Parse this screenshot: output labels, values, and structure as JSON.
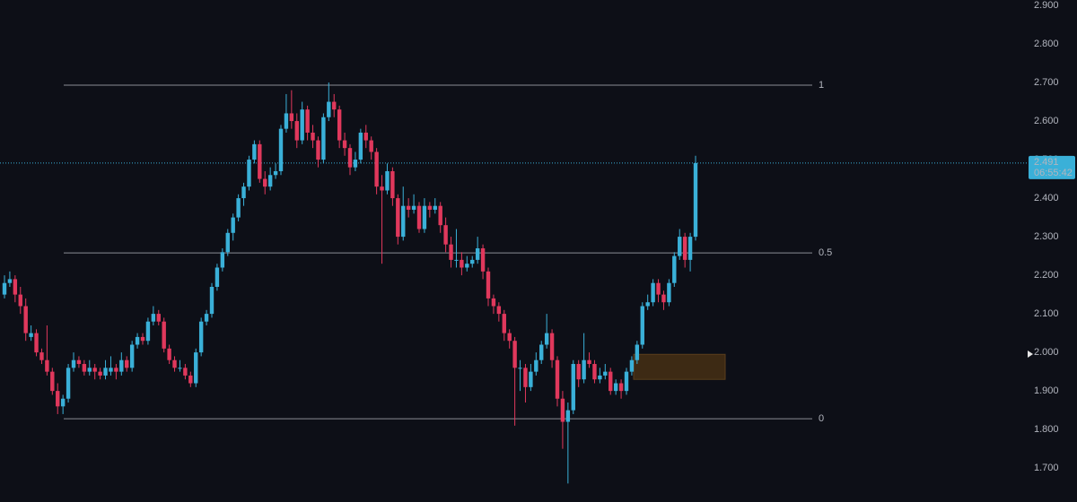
{
  "chart_data": {
    "type": "candlestick",
    "up_color": "#3ab0d8",
    "down_color": "#e0385c",
    "ylim": [
      1.612,
      2.914
    ],
    "yticks": [
      {
        "value": 2.9,
        "label": "2.900"
      },
      {
        "value": 2.8,
        "label": "2.800"
      },
      {
        "value": 2.7,
        "label": "2.700"
      },
      {
        "value": 2.6,
        "label": "2.600"
      },
      {
        "value": 2.5,
        "label": "2.500"
      },
      {
        "value": 2.4,
        "label": "2.400"
      },
      {
        "value": 2.3,
        "label": "2.300"
      },
      {
        "value": 2.2,
        "label": "2.200"
      },
      {
        "value": 2.1,
        "label": "2.100"
      },
      {
        "value": 2.0,
        "label": "2.000"
      },
      {
        "value": 1.9,
        "label": "1.900"
      },
      {
        "value": 1.8,
        "label": "1.800"
      },
      {
        "value": 1.7,
        "label": "1.700"
      }
    ],
    "last_price": {
      "value": 2.491,
      "label": "2.491",
      "countdown": "06:55:42"
    },
    "fib_levels": [
      {
        "level": 1,
        "price": 2.693
      },
      {
        "level": 0.5,
        "price": 2.258
      },
      {
        "level": 0,
        "price": 1.828
      }
    ],
    "zone": {
      "low": 1.93,
      "high": 1.995,
      "color": "#3d2a14"
    },
    "ohlc": [
      [
        2.15,
        2.2,
        2.14,
        2.18
      ],
      [
        2.18,
        2.21,
        2.17,
        2.19
      ],
      [
        2.19,
        2.2,
        2.13,
        2.15
      ],
      [
        2.15,
        2.17,
        2.1,
        2.12
      ],
      [
        2.12,
        2.14,
        2.03,
        2.05
      ],
      [
        2.04,
        2.07,
        2.03,
        2.05
      ],
      [
        2.05,
        2.06,
        1.99,
        2.0
      ],
      [
        2.0,
        2.01,
        1.97,
        1.98
      ],
      [
        1.98,
        2.07,
        1.94,
        1.95
      ],
      [
        1.95,
        1.96,
        1.89,
        1.9
      ],
      [
        1.9,
        1.92,
        1.84,
        1.86
      ],
      [
        1.86,
        1.89,
        1.84,
        1.88
      ],
      [
        1.88,
        1.97,
        1.87,
        1.96
      ],
      [
        1.96,
        2.0,
        1.95,
        1.98
      ],
      [
        1.98,
        1.99,
        1.96,
        1.97
      ],
      [
        1.97,
        1.98,
        1.94,
        1.95
      ],
      [
        1.95,
        1.98,
        1.94,
        1.96
      ],
      [
        1.96,
        1.97,
        1.93,
        1.95
      ],
      [
        1.95,
        1.96,
        1.93,
        1.94
      ],
      [
        1.94,
        1.98,
        1.93,
        1.96
      ],
      [
        1.95,
        1.99,
        1.94,
        1.96
      ],
      [
        1.96,
        1.97,
        1.93,
        1.95
      ],
      [
        1.95,
        2.0,
        1.94,
        1.98
      ],
      [
        1.98,
        1.99,
        1.95,
        1.96
      ],
      [
        1.96,
        2.03,
        1.95,
        2.02
      ],
      [
        2.02,
        2.05,
        2.01,
        2.04
      ],
      [
        2.04,
        2.05,
        2.02,
        2.03
      ],
      [
        2.03,
        2.09,
        2.02,
        2.08
      ],
      [
        2.08,
        2.12,
        2.07,
        2.1
      ],
      [
        2.1,
        2.11,
        2.07,
        2.08
      ],
      [
        2.08,
        2.09,
        2.0,
        2.01
      ],
      [
        2.01,
        2.02,
        1.97,
        1.98
      ],
      [
        1.98,
        1.99,
        1.95,
        1.96
      ],
      [
        1.96,
        1.98,
        1.95,
        1.96
      ],
      [
        1.96,
        1.97,
        1.93,
        1.94
      ],
      [
        1.94,
        1.95,
        1.91,
        1.92
      ],
      [
        1.92,
        2.01,
        1.91,
        2.0
      ],
      [
        2.0,
        2.09,
        1.99,
        2.08
      ],
      [
        2.08,
        2.11,
        2.07,
        2.1
      ],
      [
        2.1,
        2.18,
        2.09,
        2.17
      ],
      [
        2.17,
        2.23,
        2.16,
        2.22
      ],
      [
        2.22,
        2.27,
        2.21,
        2.26
      ],
      [
        2.26,
        2.32,
        2.25,
        2.31
      ],
      [
        2.31,
        2.36,
        2.29,
        2.35
      ],
      [
        2.35,
        2.41,
        2.34,
        2.4
      ],
      [
        2.4,
        2.44,
        2.38,
        2.43
      ],
      [
        2.43,
        2.51,
        2.42,
        2.5
      ],
      [
        2.5,
        2.55,
        2.49,
        2.54
      ],
      [
        2.54,
        2.55,
        2.44,
        2.45
      ],
      [
        2.45,
        2.47,
        2.41,
        2.43
      ],
      [
        2.43,
        2.48,
        2.42,
        2.46
      ],
      [
        2.46,
        2.49,
        2.45,
        2.47
      ],
      [
        2.47,
        2.59,
        2.46,
        2.58
      ],
      [
        2.58,
        2.67,
        2.57,
        2.62
      ],
      [
        2.62,
        2.68,
        2.58,
        2.6
      ],
      [
        2.6,
        2.62,
        2.53,
        2.55
      ],
      [
        2.55,
        2.65,
        2.54,
        2.63
      ],
      [
        2.63,
        2.64,
        2.55,
        2.57
      ],
      [
        2.57,
        2.59,
        2.53,
        2.55
      ],
      [
        2.55,
        2.56,
        2.48,
        2.5
      ],
      [
        2.5,
        2.62,
        2.49,
        2.61
      ],
      [
        2.61,
        2.7,
        2.6,
        2.65
      ],
      [
        2.65,
        2.67,
        2.61,
        2.63
      ],
      [
        2.63,
        2.64,
        2.53,
        2.55
      ],
      [
        2.55,
        2.57,
        2.51,
        2.53
      ],
      [
        2.53,
        2.54,
        2.46,
        2.48
      ],
      [
        2.48,
        2.52,
        2.47,
        2.5
      ],
      [
        2.5,
        2.58,
        2.49,
        2.57
      ],
      [
        2.57,
        2.59,
        2.53,
        2.55
      ],
      [
        2.55,
        2.56,
        2.5,
        2.52
      ],
      [
        2.52,
        2.53,
        2.41,
        2.43
      ],
      [
        2.43,
        2.46,
        2.23,
        2.42
      ],
      [
        2.42,
        2.49,
        2.41,
        2.47
      ],
      [
        2.47,
        2.48,
        2.38,
        2.4
      ],
      [
        2.4,
        2.41,
        2.28,
        2.3
      ],
      [
        2.3,
        2.43,
        2.29,
        2.38
      ],
      [
        2.38,
        2.4,
        2.35,
        2.37
      ],
      [
        2.37,
        2.41,
        2.36,
        2.38
      ],
      [
        2.38,
        2.39,
        2.31,
        2.32
      ],
      [
        2.32,
        2.4,
        2.31,
        2.38
      ],
      [
        2.38,
        2.39,
        2.35,
        2.37
      ],
      [
        2.37,
        2.4,
        2.36,
        2.38
      ],
      [
        2.38,
        2.39,
        2.31,
        2.33
      ],
      [
        2.33,
        2.35,
        2.26,
        2.28
      ],
      [
        2.28,
        2.3,
        2.22,
        2.24
      ],
      [
        2.24,
        2.32,
        2.22,
        2.24
      ],
      [
        2.24,
        2.26,
        2.2,
        2.22
      ],
      [
        2.22,
        2.25,
        2.21,
        2.23
      ],
      [
        2.23,
        2.25,
        2.22,
        2.24
      ],
      [
        2.24,
        2.3,
        2.23,
        2.27
      ],
      [
        2.27,
        2.28,
        2.19,
        2.21
      ],
      [
        2.21,
        2.22,
        2.12,
        2.14
      ],
      [
        2.14,
        2.15,
        2.1,
        2.12
      ],
      [
        2.12,
        2.13,
        2.08,
        2.1
      ],
      [
        2.1,
        2.11,
        2.03,
        2.05
      ],
      [
        2.05,
        2.06,
        2.01,
        2.03
      ],
      [
        2.03,
        2.04,
        1.81,
        1.96
      ],
      [
        1.96,
        1.98,
        1.9,
        1.96
      ],
      [
        1.96,
        1.97,
        1.87,
        1.91
      ],
      [
        1.91,
        1.97,
        1.9,
        1.95
      ],
      [
        1.95,
        2.0,
        1.94,
        1.98
      ],
      [
        1.98,
        2.03,
        1.97,
        2.02
      ],
      [
        2.02,
        2.1,
        2.01,
        2.05
      ],
      [
        2.05,
        2.06,
        1.96,
        1.98
      ],
      [
        1.98,
        1.99,
        1.86,
        1.88
      ],
      [
        1.88,
        1.9,
        1.75,
        1.82
      ],
      [
        1.82,
        1.87,
        1.66,
        1.85
      ],
      [
        1.85,
        1.98,
        1.84,
        1.97
      ],
      [
        1.97,
        1.98,
        1.91,
        1.93
      ],
      [
        1.93,
        2.05,
        1.92,
        1.98
      ],
      [
        1.98,
        2.0,
        1.96,
        1.97
      ],
      [
        1.97,
        1.98,
        1.92,
        1.93
      ],
      [
        1.93,
        1.96,
        1.92,
        1.94
      ],
      [
        1.94,
        1.97,
        1.93,
        1.95
      ],
      [
        1.95,
        1.96,
        1.89,
        1.9
      ],
      [
        1.9,
        1.93,
        1.89,
        1.92
      ],
      [
        1.92,
        1.93,
        1.88,
        1.9
      ],
      [
        1.9,
        1.96,
        1.89,
        1.95
      ],
      [
        1.95,
        1.99,
        1.94,
        1.98
      ],
      [
        1.98,
        2.03,
        1.97,
        2.02
      ],
      [
        2.02,
        2.13,
        2.01,
        2.12
      ],
      [
        2.12,
        2.15,
        2.11,
        2.13
      ],
      [
        2.13,
        2.19,
        2.12,
        2.18
      ],
      [
        2.18,
        2.19,
        2.13,
        2.15
      ],
      [
        2.15,
        2.16,
        2.11,
        2.13
      ],
      [
        2.13,
        2.19,
        2.12,
        2.18
      ],
      [
        2.18,
        2.26,
        2.17,
        2.25
      ],
      [
        2.25,
        2.32,
        2.24,
        2.3
      ],
      [
        2.3,
        2.31,
        2.22,
        2.24
      ],
      [
        2.24,
        2.31,
        2.21,
        2.3
      ],
      [
        2.3,
        2.51,
        2.29,
        2.491
      ]
    ]
  }
}
